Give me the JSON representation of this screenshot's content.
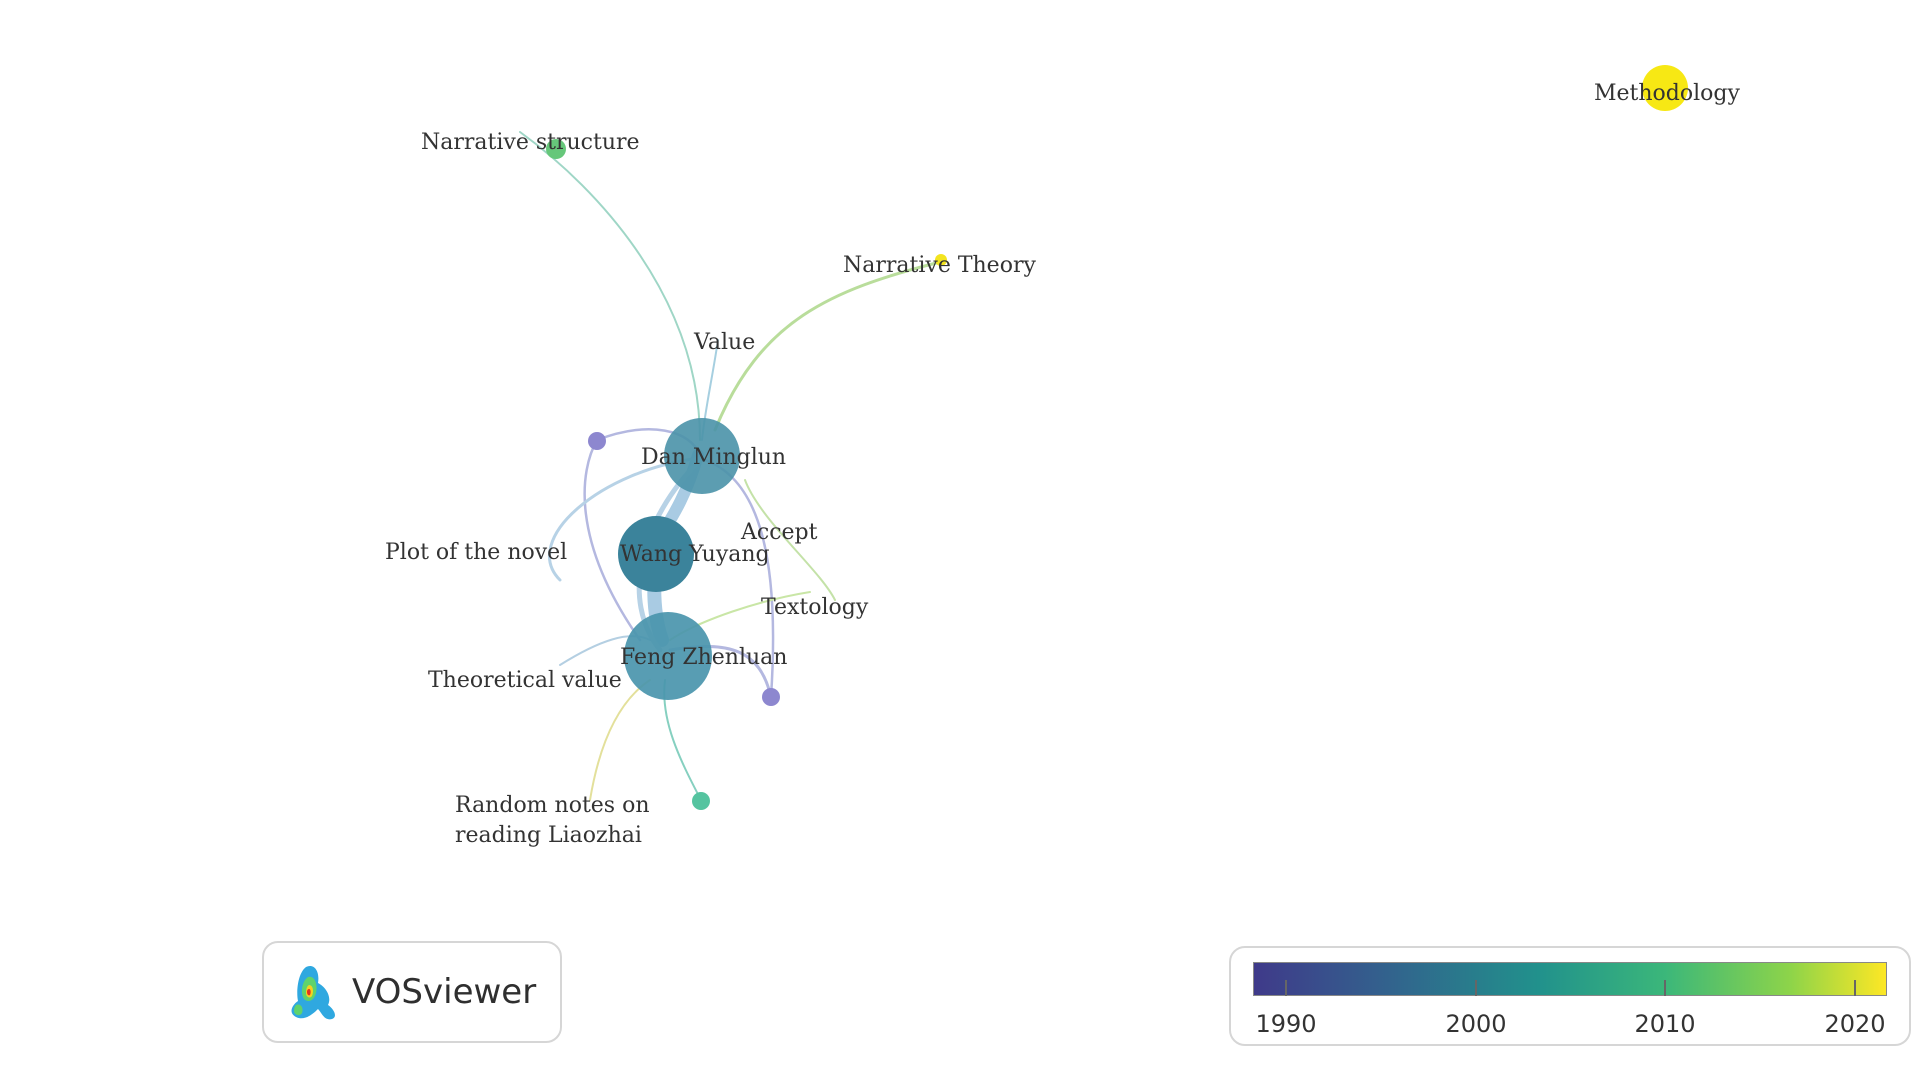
{
  "app": {
    "logo_text": "VOSviewer"
  },
  "colors": {
    "scale": [
      "#3b3f8c",
      "#33608d",
      "#21918c",
      "#3bb77a",
      "#8ed449",
      "#fde725"
    ]
  },
  "nodes": [
    {
      "id": "narrative-structure",
      "label": "Narrative structure",
      "year": 2010,
      "color": "#66c77a"
    },
    {
      "id": "narrative-theory",
      "label": "Narrative Theory",
      "year": 2021,
      "color": "#f3e41f"
    },
    {
      "id": "methodology",
      "label": "Methodology",
      "year": 2021,
      "color": "#f7e814"
    },
    {
      "id": "value",
      "label": "Value",
      "year": 2000,
      "color": "#4f9bb0"
    },
    {
      "id": "dan-minglun",
      "label": "Dan  Minglun",
      "year": 2000,
      "color": "#4a92a9"
    },
    {
      "id": "wang-yuyang",
      "label": "Wang Yuyang",
      "year": 2000,
      "color": "#3b839b"
    },
    {
      "id": "plot-of-the-novel",
      "label": "Plot of the novel",
      "year": 1995,
      "color": "#8d87cf"
    },
    {
      "id": "accept",
      "label": "Accept",
      "year": 2000,
      "color": "#4f9bb0"
    },
    {
      "id": "textology",
      "label": "Textology",
      "year": 2015,
      "color": "#b6d86a"
    },
    {
      "id": "feng-zhenluan",
      "label": "Feng Zhenluan",
      "year": 2000,
      "color": "#4a95ad"
    },
    {
      "id": "theoretical-value",
      "label": "Theoretical value",
      "year": 1995,
      "color": "#8d87cf"
    },
    {
      "id": "random-notes",
      "label_lines": [
        "Random notes on",
        "reading Liaozhai"
      ],
      "year": 2005,
      "color": "#55c4a0"
    }
  ],
  "legend": {
    "ticks": [
      "1990",
      "2000",
      "2010",
      "2020"
    ]
  }
}
